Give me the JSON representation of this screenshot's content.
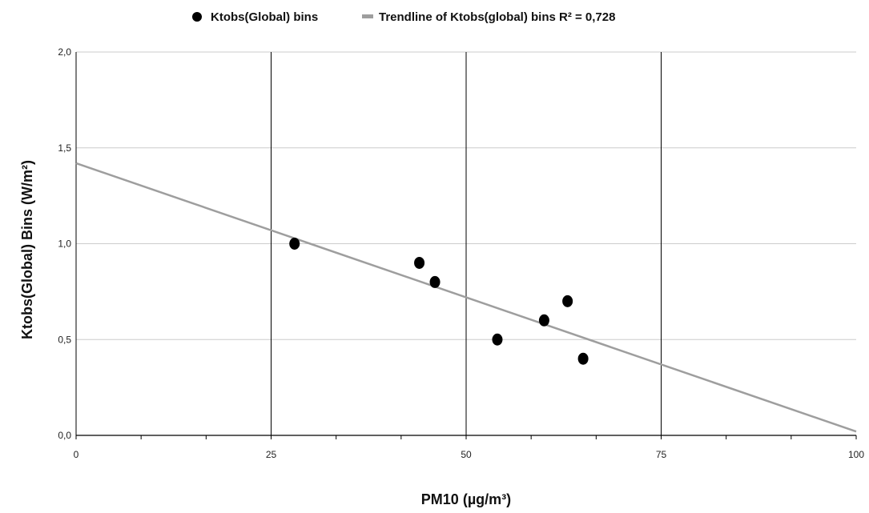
{
  "chart_data": {
    "type": "scatter",
    "title": "",
    "xlabel": "PM10 (µg/m³)",
    "ylabel": "Ktobs(Global) Bins (W/m²)",
    "xlim": [
      0,
      100
    ],
    "ylim": [
      0,
      2
    ],
    "x_ticks": [
      "0",
      "25",
      "50",
      "75",
      "100"
    ],
    "y_ticks": [
      "0,0",
      "0,5",
      "1,0",
      "1,5",
      "2,0"
    ],
    "legend_position": "top-center",
    "series": [
      {
        "name": "Ktobs(Global) bins",
        "color": "#000000",
        "points": [
          {
            "x": 28,
            "y": 1.0
          },
          {
            "x": 44,
            "y": 0.9
          },
          {
            "x": 46,
            "y": 0.8
          },
          {
            "x": 54,
            "y": 0.5
          },
          {
            "x": 60,
            "y": 0.6
          },
          {
            "x": 63,
            "y": 0.7
          },
          {
            "x": 65,
            "y": 0.4
          }
        ]
      }
    ],
    "trendline": {
      "name": "Trendline of Ktobs(global) bins R² = 0,728",
      "color": "#9e9e9e",
      "start": {
        "x": 0,
        "y": 1.42
      },
      "end": {
        "x": 100,
        "y": 0.02
      }
    },
    "grid": {
      "horizontal": true,
      "vertical_major": true,
      "horizontal_color": "#cccccc",
      "vertical_color": "#000000"
    }
  }
}
